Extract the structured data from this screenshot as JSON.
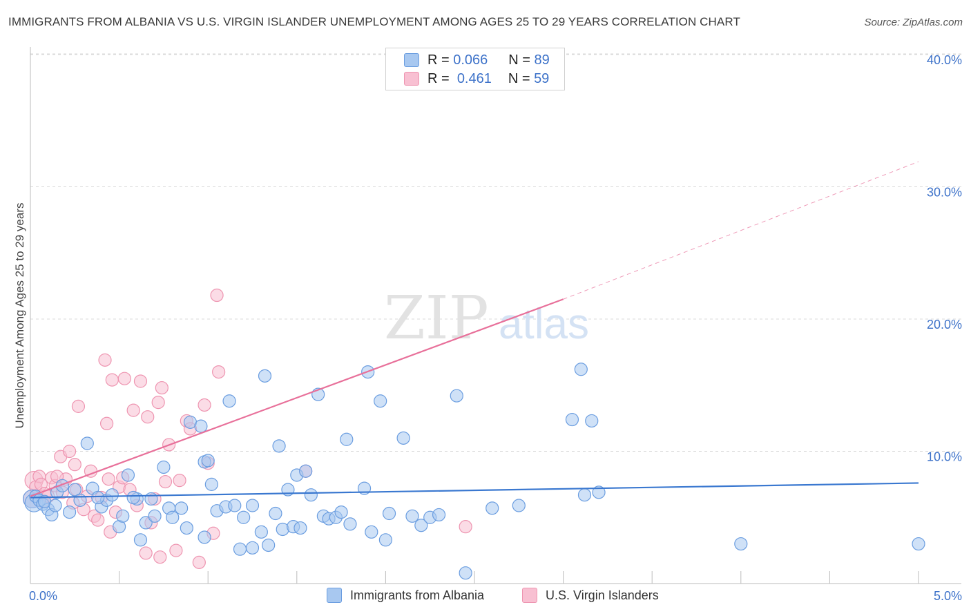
{
  "title": "IMMIGRANTS FROM ALBANIA VS U.S. VIRGIN ISLANDER UNEMPLOYMENT AMONG AGES 25 TO 29 YEARS CORRELATION CHART",
  "source": "Source: ZipAtlas.com",
  "watermark": {
    "zip": "ZIP",
    "atlas": "atlas"
  },
  "legend": {
    "r_label": "R =",
    "n_label": "N =",
    "series": [
      {
        "name": "Immigrants from Albania",
        "r": "0.066",
        "n": "89"
      },
      {
        "name": "U.S. Virgin Islanders",
        "r": "0.461",
        "n": "59"
      }
    ]
  },
  "colors": {
    "blue_fill": "#a8c8f0",
    "blue_stroke": "#6a9de0",
    "blue_line": "#3a78d0",
    "pink_fill": "#f8c0d2",
    "pink_stroke": "#ee94b0",
    "pink_line": "#e8709a",
    "axis_label": "#3d72c9",
    "grid": "#d8d8d8"
  },
  "chart_data": {
    "type": "scatter",
    "title": "IMMIGRANTS FROM ALBANIA VS U.S. VIRGIN ISLANDER UNEMPLOYMENT AMONG AGES 25 TO 29 YEARS CORRELATION CHART",
    "xlabel": "",
    "ylabel": "Unemployment Among Ages 25 to 29 years",
    "xlim": [
      0,
      5
    ],
    "ylim": [
      0,
      40
    ],
    "x_tick_labels": [
      {
        "value": 0,
        "label": "0.0%"
      },
      {
        "value": 5,
        "label": "5.0%"
      }
    ],
    "y_tick_labels": [
      {
        "value": 10,
        "label": "10.0%"
      },
      {
        "value": 20,
        "label": "20.0%"
      },
      {
        "value": 30,
        "label": "30.0%"
      },
      {
        "value": 40,
        "label": "40.0%"
      }
    ],
    "series": [
      {
        "name": "Immigrants from Albania",
        "color": "blue",
        "trend": {
          "x0": 0,
          "y0": 6.5,
          "x1": 5.0,
          "y1": 7.6,
          "dashed_to": null
        },
        "points": [
          [
            0.01,
            6.4
          ],
          [
            0.02,
            6.1
          ],
          [
            0.03,
            6.6
          ],
          [
            0.05,
            6.3
          ],
          [
            0.07,
            6.0
          ],
          [
            0.1,
            5.6
          ],
          [
            0.12,
            5.2
          ],
          [
            0.15,
            6.9
          ],
          [
            0.18,
            7.4
          ],
          [
            0.22,
            5.4
          ],
          [
            0.25,
            7.1
          ],
          [
            0.28,
            6.3
          ],
          [
            0.32,
            10.6
          ],
          [
            0.35,
            7.2
          ],
          [
            0.4,
            5.8
          ],
          [
            0.43,
            6.3
          ],
          [
            0.46,
            6.7
          ],
          [
            0.5,
            4.3
          ],
          [
            0.52,
            5.1
          ],
          [
            0.55,
            8.2
          ],
          [
            0.6,
            6.4
          ],
          [
            0.62,
            3.3
          ],
          [
            0.65,
            4.6
          ],
          [
            0.68,
            6.4
          ],
          [
            0.7,
            5.1
          ],
          [
            0.75,
            8.8
          ],
          [
            0.78,
            5.7
          ],
          [
            0.8,
            5.0
          ],
          [
            0.88,
            4.2
          ],
          [
            0.9,
            12.2
          ],
          [
            0.96,
            11.9
          ],
          [
            0.98,
            9.2
          ],
          [
            0.98,
            3.5
          ],
          [
            1.0,
            9.3
          ],
          [
            1.02,
            7.5
          ],
          [
            1.05,
            5.5
          ],
          [
            1.1,
            5.8
          ],
          [
            1.12,
            13.8
          ],
          [
            1.15,
            5.9
          ],
          [
            1.18,
            2.6
          ],
          [
            1.2,
            5.0
          ],
          [
            1.25,
            2.7
          ],
          [
            1.3,
            3.9
          ],
          [
            1.32,
            15.7
          ],
          [
            1.34,
            2.9
          ],
          [
            1.38,
            5.3
          ],
          [
            1.4,
            10.4
          ],
          [
            1.42,
            4.1
          ],
          [
            1.45,
            7.1
          ],
          [
            1.48,
            4.3
          ],
          [
            1.5,
            8.2
          ],
          [
            1.52,
            4.2
          ],
          [
            1.55,
            8.5
          ],
          [
            1.58,
            6.7
          ],
          [
            1.62,
            14.3
          ],
          [
            1.65,
            5.1
          ],
          [
            1.68,
            4.9
          ],
          [
            1.72,
            5.0
          ],
          [
            1.75,
            5.4
          ],
          [
            1.78,
            10.9
          ],
          [
            1.8,
            4.5
          ],
          [
            1.88,
            7.2
          ],
          [
            1.9,
            16.0
          ],
          [
            1.92,
            3.9
          ],
          [
            1.97,
            13.8
          ],
          [
            2.0,
            3.3
          ],
          [
            2.02,
            5.3
          ],
          [
            2.1,
            11.0
          ],
          [
            2.15,
            5.1
          ],
          [
            2.2,
            4.4
          ],
          [
            2.25,
            5.0
          ],
          [
            2.3,
            5.2
          ],
          [
            2.4,
            14.2
          ],
          [
            2.45,
            0.8
          ],
          [
            2.6,
            5.7
          ],
          [
            2.75,
            5.9
          ],
          [
            3.05,
            12.4
          ],
          [
            3.1,
            16.2
          ],
          [
            3.12,
            6.7
          ],
          [
            3.16,
            12.3
          ],
          [
            3.2,
            6.9
          ],
          [
            4.0,
            3.0
          ],
          [
            5.0,
            3.0
          ],
          [
            0.08,
            6.2
          ],
          [
            0.14,
            5.9
          ],
          [
            0.38,
            6.5
          ],
          [
            0.58,
            6.5
          ],
          [
            0.85,
            5.7
          ],
          [
            1.25,
            5.9
          ]
        ]
      },
      {
        "name": "U.S. Virgin Islanders",
        "color": "pink",
        "trend": {
          "x0": 0,
          "y0": 6.6,
          "x1": 3.0,
          "y1": 21.5,
          "dashed_to": [
            5.0,
            31.9
          ]
        },
        "points": [
          [
            0.01,
            6.4
          ],
          [
            0.02,
            7.8
          ],
          [
            0.03,
            7.3
          ],
          [
            0.05,
            8.1
          ],
          [
            0.06,
            7.5
          ],
          [
            0.07,
            6.2
          ],
          [
            0.08,
            6.8
          ],
          [
            0.1,
            6.6
          ],
          [
            0.12,
            8.0
          ],
          [
            0.14,
            7.4
          ],
          [
            0.17,
            9.6
          ],
          [
            0.18,
            6.9
          ],
          [
            0.2,
            7.9
          ],
          [
            0.22,
            10.0
          ],
          [
            0.24,
            6.1
          ],
          [
            0.25,
            9.0
          ],
          [
            0.26,
            7.1
          ],
          [
            0.27,
            13.4
          ],
          [
            0.3,
            5.6
          ],
          [
            0.32,
            6.6
          ],
          [
            0.34,
            8.5
          ],
          [
            0.36,
            5.1
          ],
          [
            0.38,
            4.8
          ],
          [
            0.4,
            6.5
          ],
          [
            0.42,
            16.9
          ],
          [
            0.43,
            12.1
          ],
          [
            0.44,
            7.9
          ],
          [
            0.45,
            3.9
          ],
          [
            0.46,
            15.4
          ],
          [
            0.48,
            5.4
          ],
          [
            0.5,
            7.3
          ],
          [
            0.52,
            8.0
          ],
          [
            0.53,
            15.5
          ],
          [
            0.56,
            7.1
          ],
          [
            0.58,
            13.1
          ],
          [
            0.6,
            5.9
          ],
          [
            0.62,
            15.3
          ],
          [
            0.65,
            2.3
          ],
          [
            0.66,
            12.6
          ],
          [
            0.68,
            4.6
          ],
          [
            0.7,
            6.4
          ],
          [
            0.72,
            13.7
          ],
          [
            0.73,
            2.0
          ],
          [
            0.74,
            14.8
          ],
          [
            0.76,
            7.7
          ],
          [
            0.78,
            10.5
          ],
          [
            0.82,
            2.5
          ],
          [
            0.84,
            7.8
          ],
          [
            0.88,
            12.3
          ],
          [
            0.9,
            11.7
          ],
          [
            0.95,
            1.6
          ],
          [
            0.98,
            13.5
          ],
          [
            1.0,
            9.1
          ],
          [
            1.03,
            3.8
          ],
          [
            1.05,
            21.8
          ],
          [
            1.06,
            16.0
          ],
          [
            1.55,
            8.5
          ],
          [
            2.45,
            4.3
          ],
          [
            0.15,
            8.1
          ]
        ]
      }
    ]
  }
}
